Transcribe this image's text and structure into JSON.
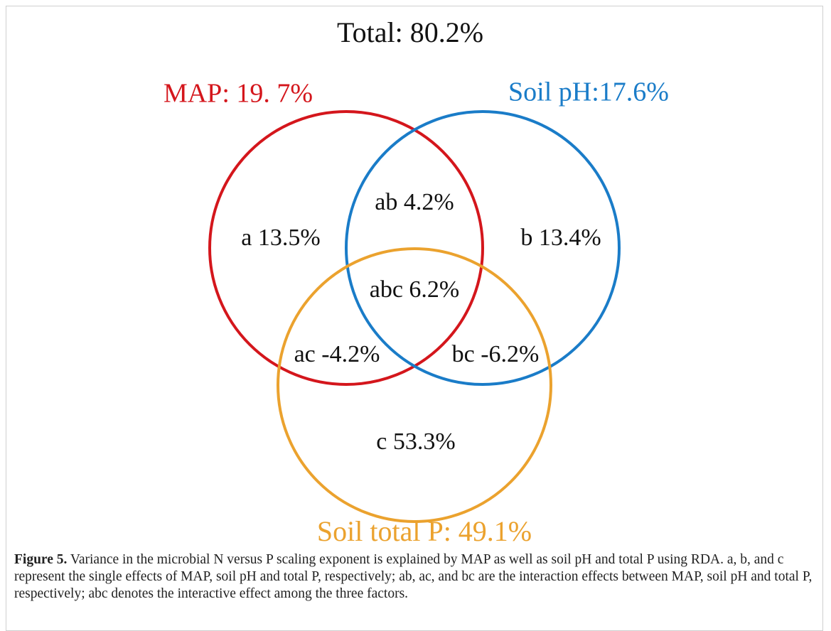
{
  "title": "Total: 80.2%",
  "sets": [
    {
      "label": "MAP: 19. 7%",
      "color": "#d4161c"
    },
    {
      "label": "Soil pH:17.6%",
      "color": "#1a7cc8"
    },
    {
      "label": "Soil total P: 49.1%",
      "color": "#eba22e"
    }
  ],
  "regions": [
    "a 13.5%",
    "ab 4.2%",
    "b 13.4%",
    "abc 6.2%",
    "ac -4.2%",
    "bc -6.2%",
    "c 53.3%"
  ],
  "caption": {
    "label": "Figure 5.",
    "text": "Variance in the microbial N versus P scaling exponent is explained by MAP as well as soil pH and total P using RDA. a, b, and c represent the single effects of MAP, soil pH and total P, respectively; ab, ac, and bc are the interaction effects between MAP, soil pH and total P, respectively; abc denotes the interactive effect among the three factors."
  }
}
